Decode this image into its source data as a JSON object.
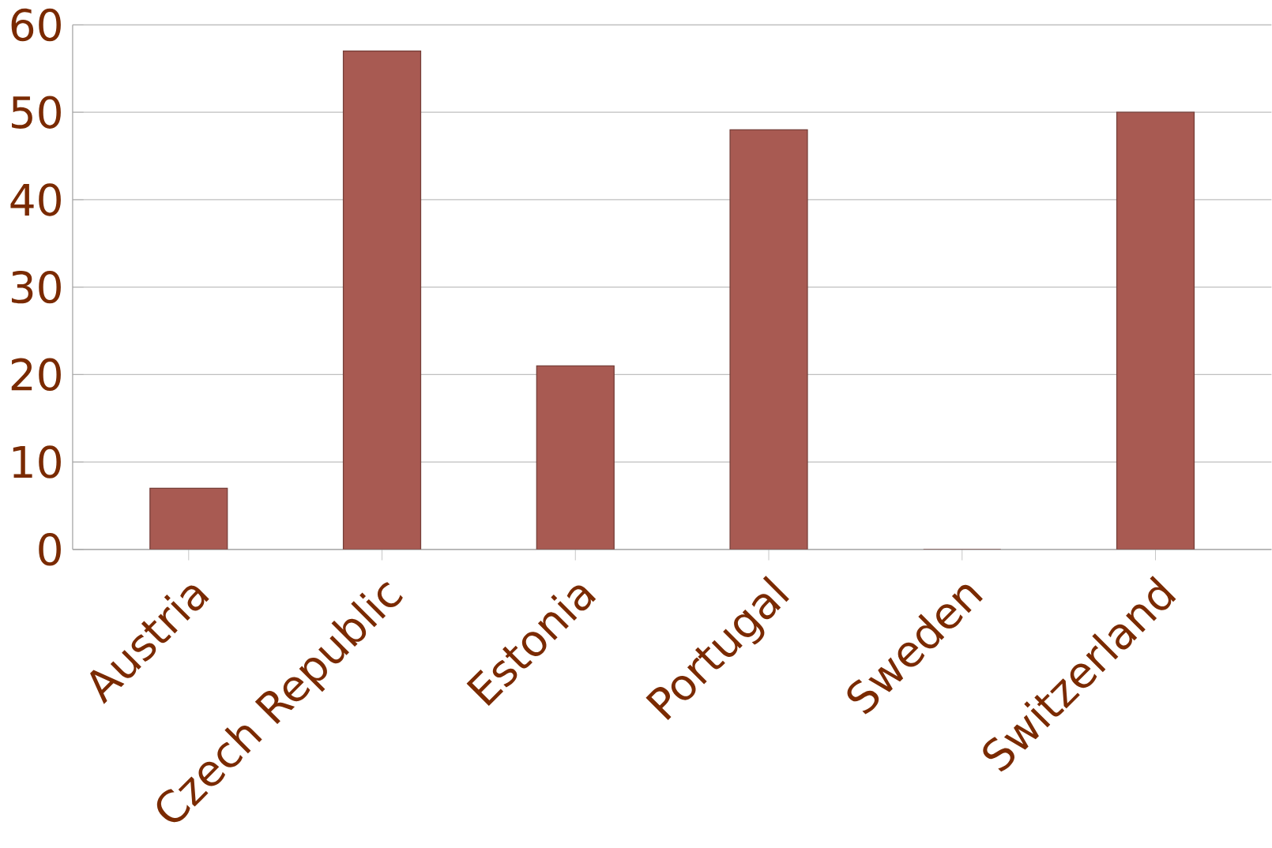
{
  "chart_data": {
    "type": "bar",
    "categories": [
      "Austria",
      "Czech Republic",
      "Estonia",
      "Portugal",
      "Sweden",
      "Switzerland"
    ],
    "values": [
      7,
      57,
      21,
      48,
      0,
      50
    ],
    "color": "#a85a52",
    "ylim": [
      0,
      60
    ],
    "yticks": [
      0,
      10,
      20,
      30,
      40,
      50,
      60
    ],
    "grid": "y"
  }
}
